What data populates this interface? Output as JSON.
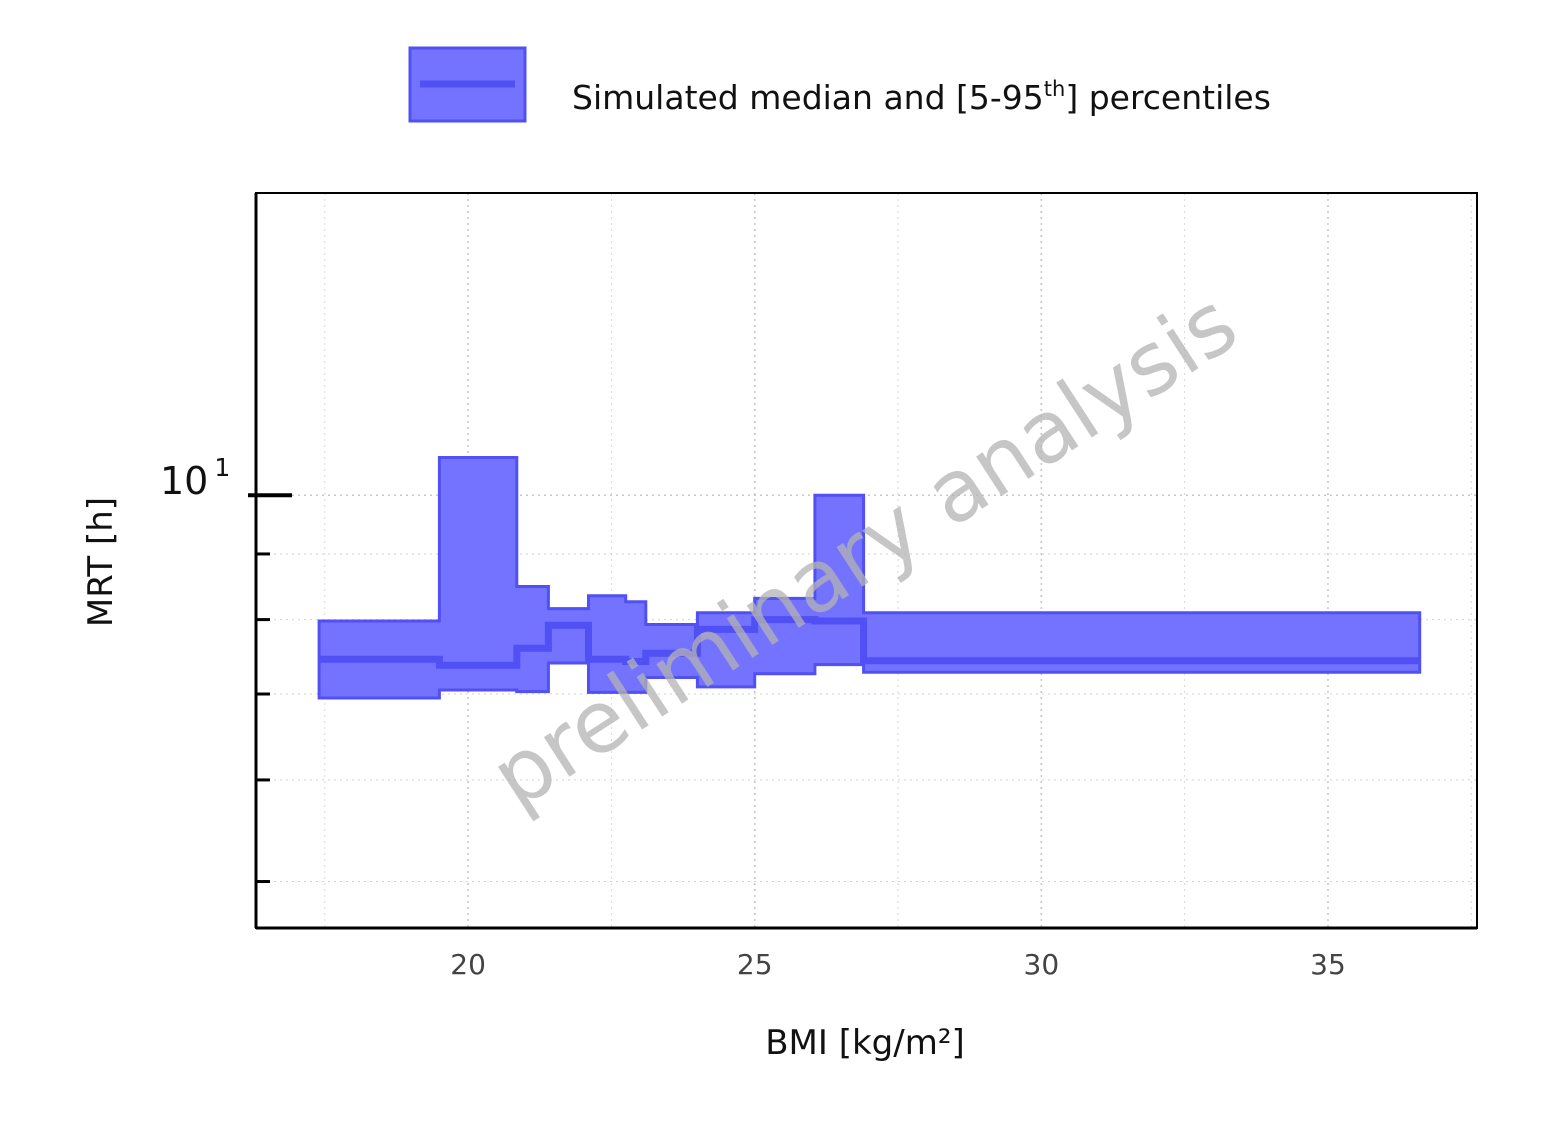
{
  "chart_data": {
    "type": "area",
    "xlabel": "BMI [kg/m²]",
    "ylabel": "MRT [h]",
    "y_scale": "log",
    "xlim": [
      16.3,
      37.6
    ],
    "ylim": [
      4.6,
      17.2
    ],
    "x_ticks": [
      20,
      25,
      30,
      35
    ],
    "x_tick_labels": [
      "20",
      "25",
      "30",
      "35"
    ],
    "y_tick_label": {
      "base": "10",
      "exponent": "1"
    },
    "grid": true,
    "legend_position": "top",
    "legend_label": "Simulated median and [5-95",
    "legend_label_sup": "th",
    "legend_label_end": "] percentiles",
    "watermark": "preliminary analysis",
    "series": [
      {
        "bins": [
          {
            "x0": 17.4,
            "x1": 19.5,
            "p5": 6.95,
            "median": 7.45,
            "p95": 7.98
          },
          {
            "x0": 19.5,
            "x1": 20.85,
            "p5": 7.05,
            "median": 7.37,
            "p95": 10.7
          },
          {
            "x0": 20.85,
            "x1": 21.4,
            "p5": 7.03,
            "median": 7.6,
            "p95": 8.49
          },
          {
            "x0": 21.4,
            "x1": 22.1,
            "p5": 7.4,
            "median": 7.92,
            "p95": 8.16
          },
          {
            "x0": 22.1,
            "x1": 22.75,
            "p5": 7.02,
            "median": 7.45,
            "p95": 8.35
          },
          {
            "x0": 22.75,
            "x1": 23.1,
            "p5": 7.02,
            "median": 7.42,
            "p95": 8.26
          },
          {
            "x0": 23.1,
            "x1": 24.0,
            "p5": 7.21,
            "median": 7.53,
            "p95": 7.93
          },
          {
            "x0": 24.0,
            "x1": 25.0,
            "p5": 7.09,
            "median": 7.86,
            "p95": 8.1
          },
          {
            "x0": 25.0,
            "x1": 26.05,
            "p5": 7.26,
            "median": 8.0,
            "p95": 8.31
          },
          {
            "x0": 26.05,
            "x1": 26.9,
            "p5": 7.38,
            "median": 7.98,
            "p95": 10.0
          },
          {
            "x0": 26.9,
            "x1": 36.6,
            "p5": 7.28,
            "median": 7.43,
            "p95": 8.1
          }
        ]
      }
    ]
  },
  "colors": {
    "band_fill": "#7373ff",
    "band_edge": "#5050f5",
    "median_line": "#5050f5",
    "grid": "#c8c8c8",
    "axis": "#000000"
  }
}
